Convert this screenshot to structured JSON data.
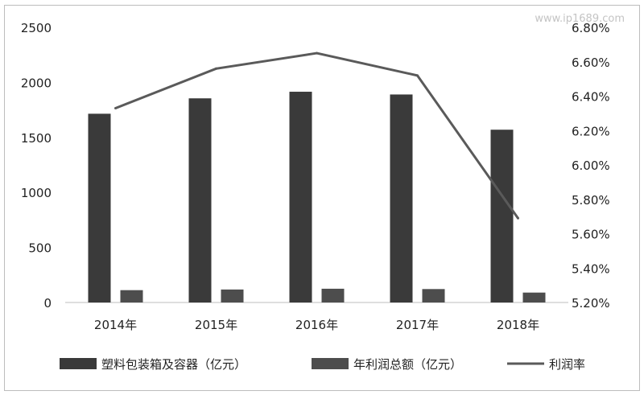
{
  "chart_data": {
    "type": "bar",
    "categories": [
      "2014年",
      "2015年",
      "2016年",
      "2017年",
      "2018年"
    ],
    "series": [
      {
        "name": "塑料包装箱及容器（亿元）",
        "type": "bar",
        "axis": "left",
        "color": "#3a3a3a",
        "values": [
          1715,
          1855,
          1915,
          1890,
          1570
        ]
      },
      {
        "name": "年利润总额（亿元）",
        "type": "bar",
        "axis": "left",
        "color": "#4d4d4d",
        "values": [
          112,
          118,
          125,
          122,
          90
        ]
      },
      {
        "name": "利润率",
        "type": "line",
        "axis": "right",
        "color": "#5a5a5a",
        "values": [
          6.33,
          6.56,
          6.65,
          6.52,
          5.69
        ]
      }
    ],
    "left_axis": {
      "ylim": [
        0,
        2500
      ],
      "ticks": [
        "0",
        "500",
        "1000",
        "1500",
        "2000",
        "2500"
      ]
    },
    "right_axis": {
      "ylim": [
        5.2,
        6.8
      ],
      "ticks": [
        "5.20%",
        "5.40%",
        "5.60%",
        "5.80%",
        "6.00%",
        "6.20%",
        "6.40%",
        "6.60%",
        "6.80%"
      ]
    },
    "title": "",
    "xlabel": "",
    "ylabel": "",
    "grid": false,
    "legend_position": "bottom"
  },
  "watermark": "www.ip1689.com"
}
